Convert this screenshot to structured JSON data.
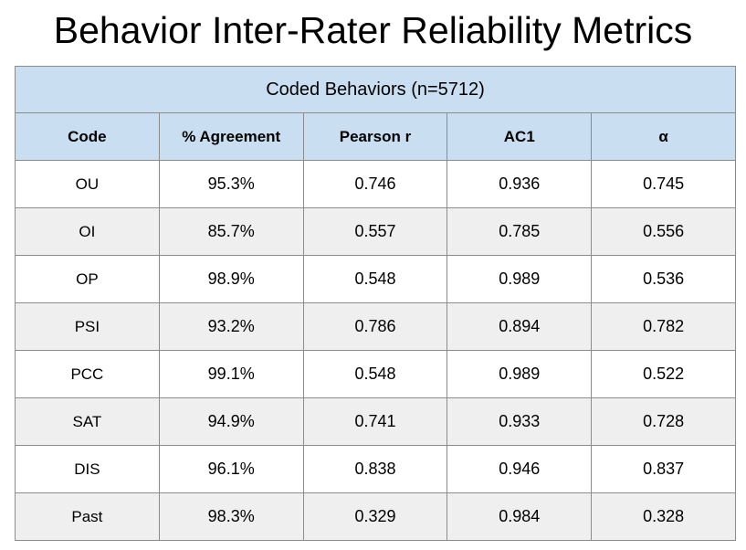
{
  "title": "Behavior Inter-Rater Reliability Metrics",
  "chart_data": {
    "type": "table",
    "title": "Behavior Inter-Rater Reliability Metrics",
    "caption": "Coded Behaviors (n=5712)",
    "columns": [
      "Code",
      "% Agreement",
      "Pearson r",
      "AC1",
      "α"
    ],
    "rows": [
      [
        "OU",
        "95.3%",
        "0.746",
        "0.936",
        "0.745"
      ],
      [
        "OI",
        "85.7%",
        "0.557",
        "0.785",
        "0.556"
      ],
      [
        "OP",
        "98.9%",
        "0.548",
        "0.989",
        "0.536"
      ],
      [
        "PSI",
        "93.2%",
        "0.786",
        "0.894",
        "0.782"
      ],
      [
        "PCC",
        "99.1%",
        "0.548",
        "0.989",
        "0.522"
      ],
      [
        "SAT",
        "94.9%",
        "0.741",
        "0.933",
        "0.728"
      ],
      [
        "DIS",
        "96.1%",
        "0.838",
        "0.946",
        "0.837"
      ],
      [
        "Past",
        "98.3%",
        "0.329",
        "0.984",
        "0.328"
      ]
    ]
  },
  "colors": {
    "header_bg": "#c9dff1",
    "alt_row_bg": "#efefef",
    "border": "#8c8c8c"
  }
}
